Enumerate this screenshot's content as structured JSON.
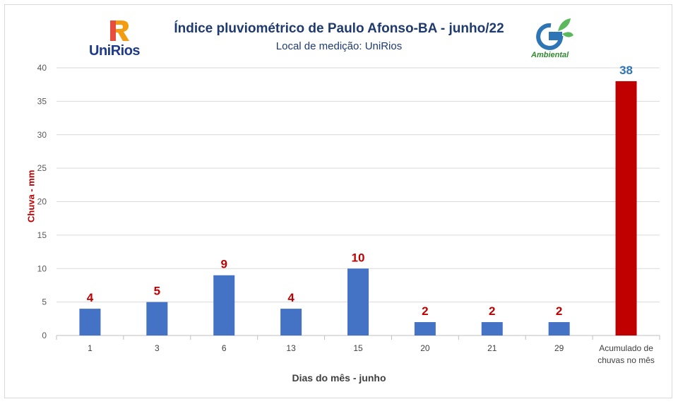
{
  "logos": {
    "left_text": "UniRios",
    "right_text": "Ambiental"
  },
  "chart_data": {
    "type": "bar",
    "title": "Índice pluviométrico de Paulo Afonso-BA - junho/22",
    "subtitle": "Local de medição: UniRios",
    "xlabel": "Dias do mês - junho",
    "ylabel": "Chuva - mm",
    "categories": [
      "1",
      "3",
      "6",
      "13",
      "15",
      "20",
      "21",
      "29",
      "Acumulado de chuvas no mês"
    ],
    "values": [
      4,
      5,
      9,
      4,
      10,
      2,
      2,
      2,
      38
    ],
    "bar_colors": [
      "#4472c4",
      "#4472c4",
      "#4472c4",
      "#4472c4",
      "#4472c4",
      "#4472c4",
      "#4472c4",
      "#4472c4",
      "#c00000"
    ],
    "label_colors": [
      "#c00000",
      "#c00000",
      "#c00000",
      "#c00000",
      "#c00000",
      "#c00000",
      "#c00000",
      "#c00000",
      "#2e75b6"
    ],
    "ylim": [
      0,
      40
    ],
    "yticks": [
      0,
      5,
      10,
      15,
      20,
      25,
      30,
      35,
      40
    ],
    "grid": true
  }
}
